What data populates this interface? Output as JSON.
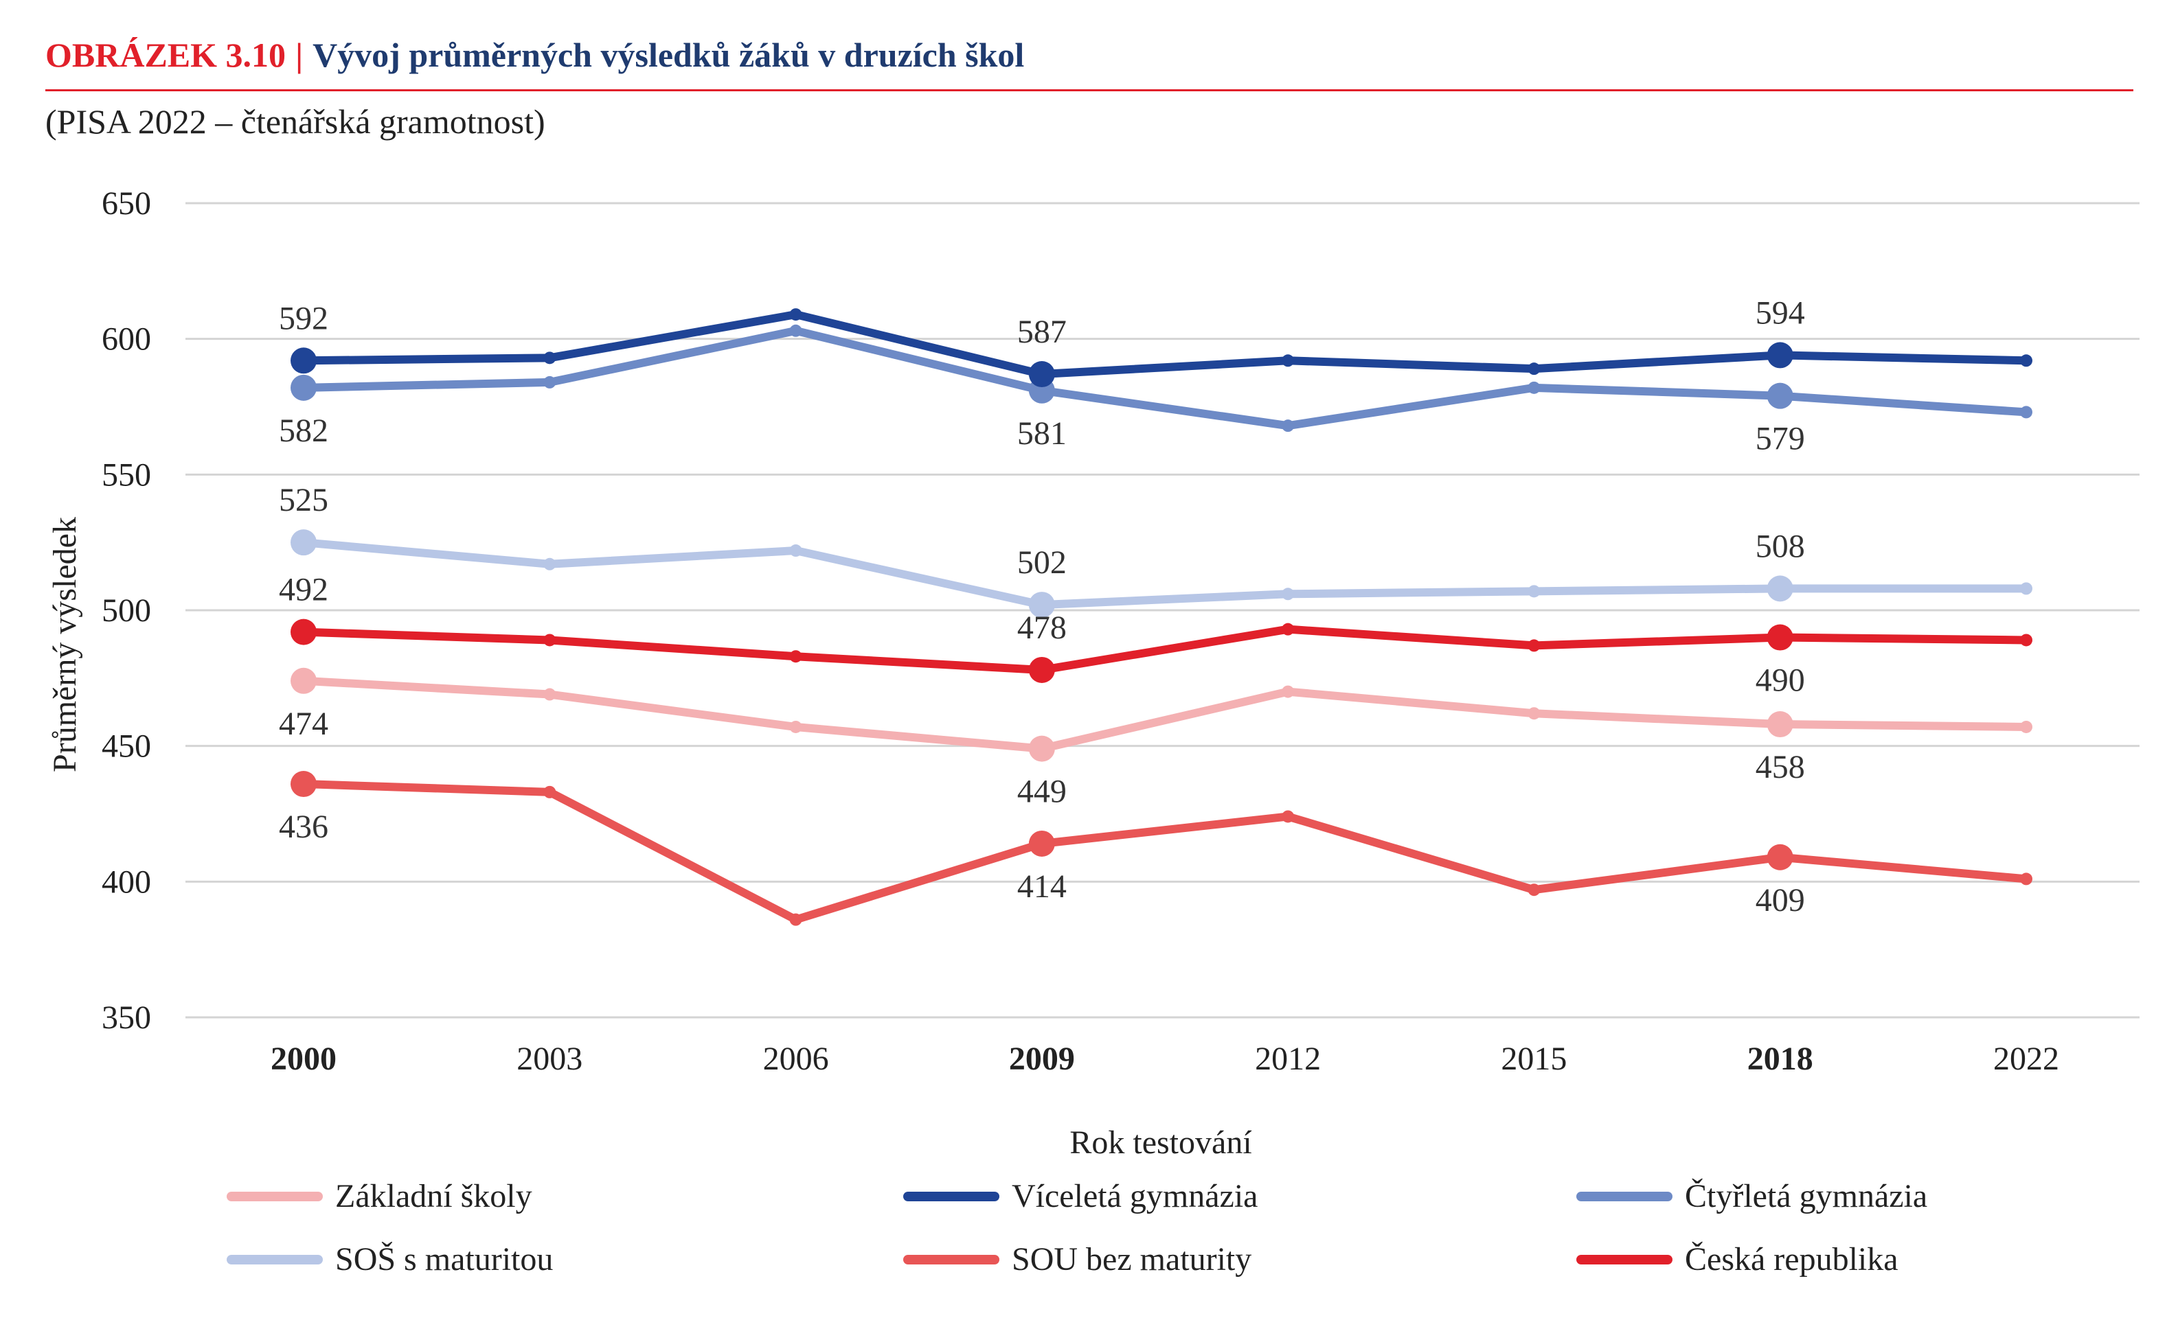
{
  "header": {
    "figure_label": "OBRÁZEK  3.10",
    "separator": "|",
    "title": "Vývoj průměrných výsledků žáků v druzích škol",
    "subtitle": "(PISA 2022 – čtenářská gramotnost)"
  },
  "chart_data": {
    "type": "line",
    "x": [
      "2000",
      "2003",
      "2006",
      "2009",
      "2012",
      "2015",
      "2018",
      "2022"
    ],
    "bold_years": [
      "2000",
      "2009",
      "2018"
    ],
    "xlabel": "Rok testování",
    "ylabel": "Průměrný výsledek",
    "ylim": [
      350,
      650
    ],
    "yticks": [
      350,
      400,
      450,
      500,
      550,
      600,
      650
    ],
    "grid": true,
    "legend_position": "bottom",
    "series": [
      {
        "name": "Základní školy",
        "color": "#f4b0b2",
        "values": [
          474,
          469,
          457,
          449,
          470,
          462,
          458,
          457
        ],
        "labels": {
          "0": "474",
          "3": "449",
          "6": "458"
        },
        "label_pos": "below"
      },
      {
        "name": "Víceletá gymnázia",
        "color": "#1f4496",
        "values": [
          592,
          593,
          609,
          587,
          592,
          589,
          594,
          592
        ],
        "labels": {
          "0": "592",
          "3": "587",
          "6": "594"
        },
        "label_pos": "above"
      },
      {
        "name": "Čtyřletá gymnázia",
        "color": "#6d8ac6",
        "values": [
          582,
          584,
          603,
          581,
          568,
          582,
          579,
          573
        ],
        "labels": {
          "0": "582",
          "3": "581",
          "6": "579"
        },
        "label_pos": "below"
      },
      {
        "name": "SOŠ s maturitou",
        "color": "#b7c6e6",
        "values": [
          525,
          517,
          522,
          502,
          506,
          507,
          508,
          508
        ],
        "labels": {
          "0": "525",
          "3": "502",
          "6": "508"
        },
        "label_pos": "above"
      },
      {
        "name": "SOU bez maturity",
        "color": "#e85555",
        "values": [
          436,
          433,
          386,
          414,
          424,
          397,
          409,
          401
        ],
        "labels": {
          "0": "436",
          "3": "414",
          "6": "409"
        },
        "label_pos": "below"
      },
      {
        "name": "Česká republika",
        "color": "#e1202a",
        "values": [
          492,
          489,
          483,
          478,
          493,
          487,
          490,
          489
        ],
        "labels": {
          "0": "492",
          "3": "478",
          "6": "490"
        },
        "label_pos": "mixed"
      }
    ]
  }
}
